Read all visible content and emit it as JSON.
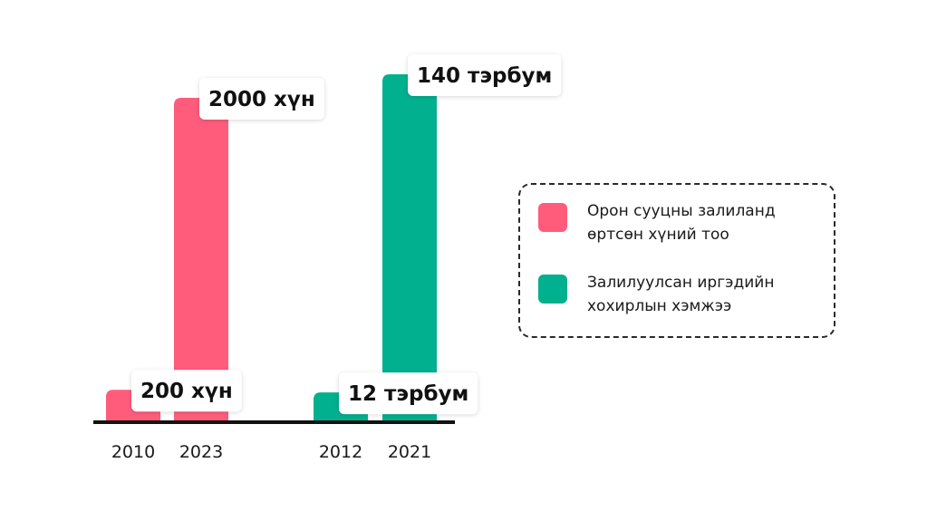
{
  "chart_data": {
    "type": "bar",
    "groups": [
      {
        "series": "Орон сууцны залиланд өртсөн хүний тоо",
        "color": "#FF5C7C",
        "categories": [
          "2010",
          "2023"
        ],
        "values": [
          200,
          2000
        ],
        "unit": "хүн",
        "labels": [
          "200 хүн",
          "2000 хүн"
        ]
      },
      {
        "series": "Залилуулсан иргэдийн хохирлын хэмжээ",
        "color": "#00B08F",
        "categories": [
          "2012",
          "2021"
        ],
        "values": [
          12,
          140
        ],
        "unit": "тэрбум",
        "labels": [
          "12 тэрбум",
          "140 тэрбум"
        ]
      }
    ],
    "title": "",
    "xlabel": "",
    "ylabel": "",
    "legend": {
      "placement": "right",
      "items": [
        {
          "label": "Орон сууцны залиланд өртсөн хүний тоо",
          "color": "#FF5C7C"
        },
        {
          "label": "Залилуулсан иргэдийн хохирлын хэмжээ",
          "color": "#00B08F"
        }
      ]
    },
    "grid": false
  }
}
